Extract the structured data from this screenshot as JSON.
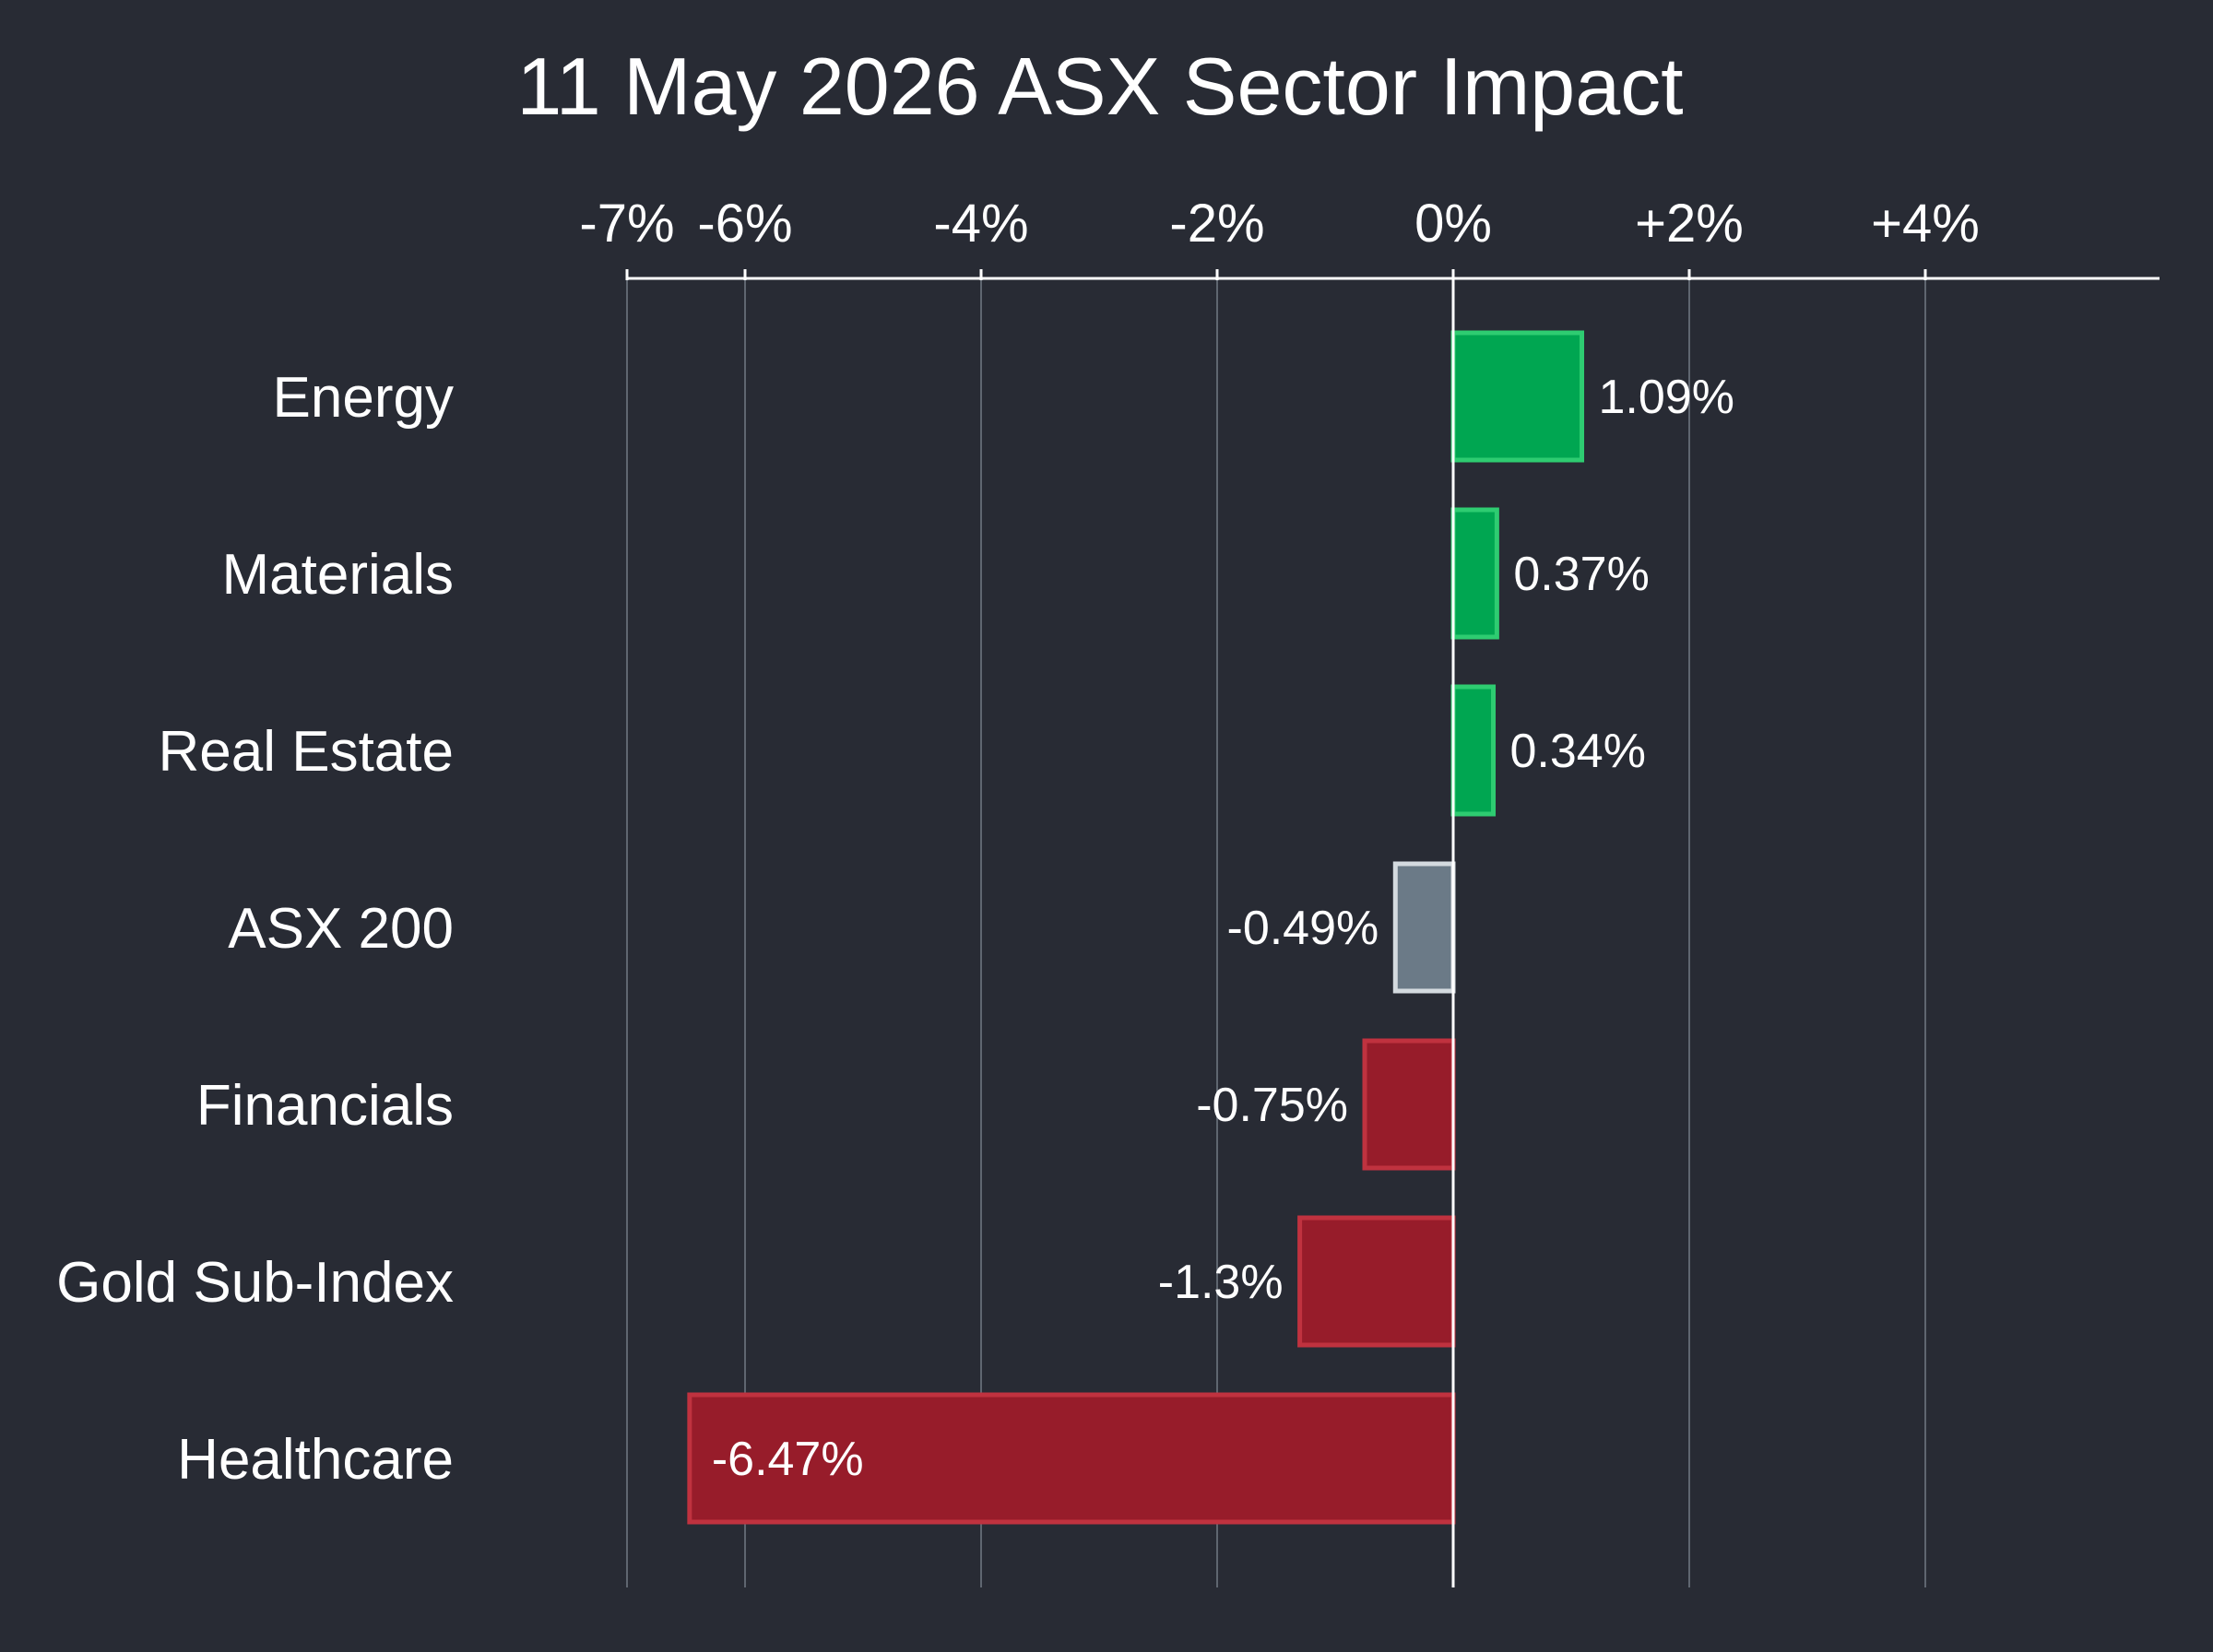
{
  "chart_data": {
    "type": "bar",
    "orientation": "horizontal",
    "title": "11 May 2026 ASX Sector Impact",
    "xlabel": "",
    "ylabel": "",
    "xlim": [
      -7,
      7
    ],
    "x_ticks": [
      -7,
      -6,
      -4,
      -2,
      0,
      2,
      4
    ],
    "x_tick_labels": [
      "-7%",
      "-6%",
      "-4%",
      "-2%",
      "0%",
      "+2%",
      "+4%"
    ],
    "axis_position": "top",
    "grid": true,
    "legend": "none",
    "categories": [
      "Energy",
      "Materials",
      "Real Estate",
      "ASX 200",
      "Financials",
      "Gold Sub-Index",
      "Healthcare"
    ],
    "values": [
      1.09,
      0.37,
      0.34,
      -0.49,
      -0.75,
      -1.3,
      -6.47
    ],
    "value_labels": [
      "1.09%",
      "0.37%",
      "0.34%",
      "-0.49%",
      "-0.75%",
      "-1.3%",
      "-6.47%"
    ],
    "bar_colors": [
      "green",
      "green",
      "green",
      "gray",
      "red",
      "red",
      "red"
    ],
    "colors": {
      "background": "#282b34",
      "green_fill": "#00a651",
      "green_border": "#2ecc71",
      "red_fill": "#971c2a",
      "red_border": "#c0323f",
      "gray_fill": "#6b7a87",
      "gray_border": "#d4dadf",
      "gridline": "#5f6670",
      "text": "#ffffff"
    }
  }
}
